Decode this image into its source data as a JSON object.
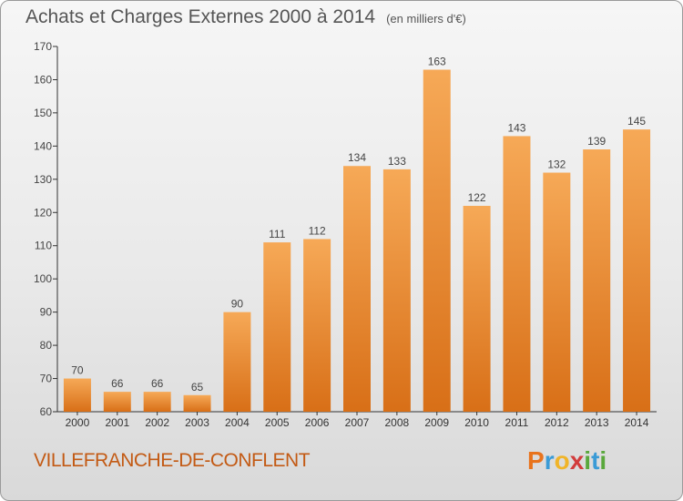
{
  "header": {
    "title": "Achats et Charges Externes 2000 à 2014",
    "unit": "(en milliers d'€)"
  },
  "footer": {
    "commune": "VILLEFRANCHE-DE-CONFLENT",
    "logo_letters": [
      "P",
      "r",
      "o",
      "x",
      "i",
      "t",
      "i"
    ],
    "logo_colors": [
      "#e8731c",
      "#3a9bd6",
      "#f0b428",
      "#d23c3c",
      "#5aa83c",
      "#3a9bd6",
      "#5aa83c"
    ]
  },
  "colors": {
    "bar_light": "#f6a957",
    "bar_dark": "#d86f17",
    "axis": "#333333"
  },
  "chart_data": {
    "type": "bar",
    "title": "Achats et Charges Externes 2000 à 2014",
    "subtitle": "(en milliers d'€)",
    "categories": [
      "2000",
      "2001",
      "2002",
      "2003",
      "2004",
      "2005",
      "2006",
      "2007",
      "2008",
      "2009",
      "2010",
      "2011",
      "2012",
      "2013",
      "2014"
    ],
    "values": [
      70,
      66,
      66,
      65,
      90,
      111,
      112,
      134,
      133,
      163,
      122,
      143,
      132,
      139,
      145
    ],
    "ylim": [
      60,
      170
    ],
    "yticks": [
      60,
      70,
      80,
      90,
      100,
      110,
      120,
      130,
      140,
      150,
      160,
      170
    ],
    "grid": false,
    "data_labels": true
  }
}
